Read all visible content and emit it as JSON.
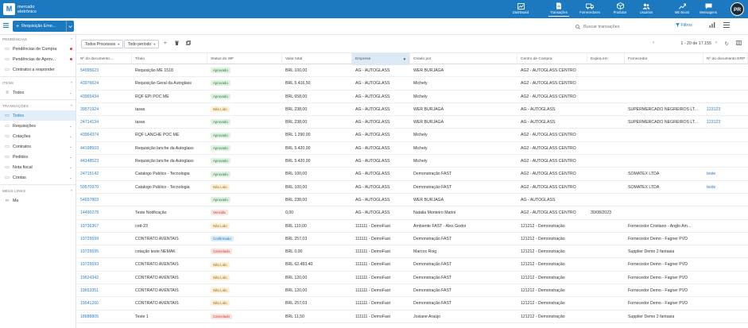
{
  "app": {
    "logo_letter": "M",
    "logo_text_1": "mercado",
    "logo_text_2": "eletrônico",
    "avatar": "PR"
  },
  "nav": [
    {
      "label": "Dashboard",
      "icon": "chart-icon"
    },
    {
      "label": "Transações",
      "icon": "document-icon"
    },
    {
      "label": "Fornecedores",
      "icon": "truck-icon"
    },
    {
      "label": "Produtos",
      "icon": "box-icon"
    },
    {
      "label": "Usuários",
      "icon": "users-icon"
    },
    {
      "label": "ME Boost",
      "icon": "rocket-icon"
    },
    {
      "label": "Mensagens",
      "icon": "messages-icon"
    }
  ],
  "subbar": {
    "new_button": "Requisição Eme...",
    "search_placeholder": "Buscar transações",
    "filters": "Filtros"
  },
  "sidebar": {
    "pendencias_title": "PENDÊNCIAS",
    "pendencias": [
      "Pendências de Compra",
      "Pendências de Aprov...",
      "Contratos a responder"
    ],
    "itens_title": "ITENS",
    "itens": [
      "Todos"
    ],
    "transacoes_title": "TRANSAÇÕES",
    "transacoes": [
      "Todos",
      "Requisições",
      "Cotações",
      "Contratos",
      "Pedidos",
      "Nota fiscal",
      "Contas"
    ],
    "meus_links_title": "MEUS LINKS",
    "meus_links": [
      "Me"
    ]
  },
  "toolbar": {
    "process_filter": "Todos Processos",
    "period_filter": "Todo período",
    "pagination": "1 - 20 de 17.155"
  },
  "table": {
    "headers": [
      "Nº do documento...",
      "Título",
      "Status do WF",
      "Valor total",
      "Empresa",
      "Criado por",
      "Centro de Compra",
      "Expira em",
      "Fornecedor",
      "Nº do documento ERP"
    ],
    "rows": [
      [
        "54995623",
        "Requisição ME 1518",
        "Aprovado",
        "BRL 100,00",
        "AG - AUTOGLASS",
        "WER BURJAGA",
        "AG2 - AUTOGLASS CENTRO",
        "",
        "",
        ""
      ],
      [
        "43976624",
        "Requisição Geral da Autoglass",
        "Aprovado",
        "BRL 5.416,50",
        "AG - AUTOGLASS",
        "Michely",
        "AG2 - AUTOGLASS CENTRO",
        "",
        "",
        ""
      ],
      [
        "43965434",
        "RQF EPI POC ME",
        "Aprovado",
        "BRL 658,00",
        "AG - AUTOGLASS",
        "Michely",
        "AG2 - AUTOGLASS CENTRO",
        "",
        "",
        ""
      ],
      [
        "39571924",
        "tasas",
        "Não Lido",
        "BRL 238,00",
        "AG - AUTOGLASS",
        "WER BURJAGA",
        "AG - AUTOGLASS",
        "",
        "SUPERMERCADO NEGREIROS LT...",
        "123123"
      ],
      [
        "24714134",
        "tasas",
        "Aprovado",
        "BRL 238,00",
        "AG - AUTOGLASS",
        "WER BURJAGA",
        "AG - AUTOGLASS",
        "",
        "SUPERMERCADO NEGREIROS LT...",
        "123123"
      ],
      [
        "43964374",
        "RQF LANCHE POC ME",
        "Aprovado",
        "BRL 1.290,00",
        "AG - AUTOGLASS",
        "Michely",
        "AG2 - AUTOGLASS CENTRO",
        "",
        "",
        ""
      ],
      [
        "44198503",
        "Requisição lanche da Autoglass",
        "Aprovado",
        "BRL 5.420,00",
        "AG - AUTOGLASS",
        "Michely",
        "AG2 - AUTOGLASS CENTRO",
        "",
        "",
        ""
      ],
      [
        "44148523",
        "Requisição lanche da Autoglass",
        "Aprovado",
        "BRL 5.420,00",
        "AG - AUTOGLASS",
        "Michely",
        "AG2 - AUTOGLASS CENTRO",
        "",
        "",
        ""
      ],
      [
        "24715142",
        "Catalogo Publico - Tecnologia",
        "Aprovado",
        "BRL 100,00",
        "AG - AUTOGLASS",
        "Demonstração FAST",
        "AG2 - AUTOGLASS CENTRO",
        "",
        "SOMATEX LTDA",
        "teste"
      ],
      [
        "59570970",
        "Catalogo Publico - Tecnologia",
        "Não Lido",
        "BRL 100,00",
        "AG - AUTOGLASS",
        "Demonstração FAST",
        "AG2 - AUTOGLASS CENTRO",
        "",
        "SOMATEX LTDA",
        "teste"
      ],
      [
        "54697803",
        "",
        "Aprovado",
        "BRL 238,00",
        "AG - AUTOGLASS",
        "WER BURJAGA",
        "AG - AUTOGLASS",
        "",
        "",
        ""
      ],
      [
        "14490278",
        "Teste Notificação",
        "Vencida",
        "0,00",
        "AG - AUTOGLASS",
        "Natalia Monteiro Marini",
        "AG2 - AUTOGLASS CENTRO",
        "30/08/2023",
        "",
        ""
      ],
      [
        "19736367",
        "cott-23",
        "Não Lido",
        "BRL 110,00",
        "111111 - DemoFast",
        "Ambiente FAST - Alex Godoi",
        "121212 - Demonstração",
        "",
        "Fornecedor Cristiano - Anglo Am...",
        ""
      ],
      [
        "19729599",
        "CONTRATO AVENTAIS",
        "Confirmado",
        "BRL 257,03",
        "111111 - DemoFast",
        "Demonstração FAST",
        "121212 - Demonstração",
        "",
        "Fornecedor Demo - Fagner PVD",
        ""
      ],
      [
        "19729595",
        "cotação teste NEMAK",
        "Cancelado",
        "BRL 0,00",
        "111111 - DemoFast",
        "Marcos Roig",
        "121212 - Demonstração",
        "",
        "Supplier Demo 2 fantasia",
        ""
      ],
      [
        "19729593",
        "CONTRATO AVENTAIS",
        "Não Lido",
        "BRL 62.483,40",
        "111111 - DemoFast",
        "Demonstração FAST",
        "121212 - Demonstração",
        "",
        "Fornecedor Demo - Fagner PVD",
        ""
      ],
      [
        "19624342",
        "CONTRATO AVENTAIS",
        "Não Lido",
        "BRL 120,00",
        "111111 - DemoFast",
        "Demonstração FAST",
        "121212 - Demonstração",
        "",
        "Fornecedor Demo - Fagner PVD",
        ""
      ],
      [
        "19653351",
        "CONTRATO AVENTAIS",
        "Não Lido",
        "BRL 120,00",
        "111111 - DemoFast",
        "Demonstração FAST",
        "121212 - Demonstração",
        "",
        "Fornecedor Demo - Fagner PVD",
        ""
      ],
      [
        "19541260",
        "CONTRATO AVENTAIS",
        "Não Lido",
        "BRL 257,03",
        "111111 - DemoFast",
        "Demonstração FAST",
        "121212 - Demonstração",
        "",
        "Fornecedor Demo - Fagner PVD",
        ""
      ],
      [
        "18688805",
        "Teste 1",
        "Cancelado",
        "BRL 11,50",
        "111111 - DemoFast",
        "Josiane Araújo",
        "121212 - Demonstração",
        "",
        "Supplier Demo 2 fantasia",
        ""
      ]
    ]
  },
  "status_colors": {
    "Aprovado": "#2e7d3a",
    "Não Lido": "#9a6b12",
    "Vencida": "#c33c2f",
    "Cancelado": "#c33c2f",
    "Confirmado": "#2a6fb0"
  },
  "colors": {
    "brand": "#1c79c0",
    "active_bg": "#e3eef8"
  }
}
